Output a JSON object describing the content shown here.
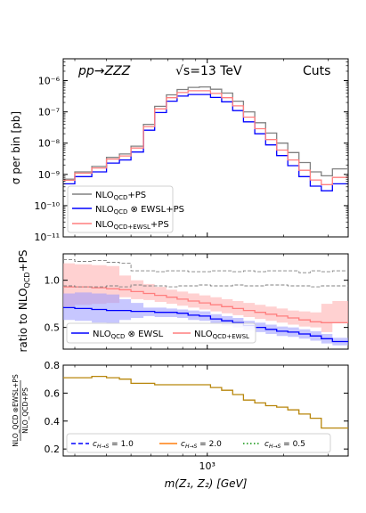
{
  "colors": {
    "nlo_ps": "#808080",
    "ewsl": "#0000ff",
    "ewsl_add": "#ff7f7f",
    "ewsl_band": "#9999ff",
    "add_band": "#ffb3b3",
    "ratio_line": "#b8860b"
  },
  "chart_data": [
    {
      "type": "line",
      "panel": "top",
      "title": "",
      "labels": {
        "process": "pp→ZZZ",
        "energy": "√s=13 TeV",
        "cuts": "Cuts"
      },
      "xlabel": "",
      "ylabel": "σ per bin [pb]",
      "yscale": "log",
      "ylim": [
        1e-11,
        5e-06
      ],
      "xscale": "log",
      "xlim": [
        270,
        3600
      ],
      "grid": false,
      "legend_position": "lower-left",
      "y_ticks": [
        "10⁻¹¹",
        "10⁻¹⁰",
        "10⁻⁹",
        "10⁻⁸",
        "10⁻⁷",
        "10⁻⁶"
      ],
      "x_edges": [
        270,
        300,
        350,
        400,
        450,
        500,
        560,
        620,
        690,
        760,
        840,
        930,
        1030,
        1140,
        1260,
        1390,
        1540,
        1700,
        1880,
        2080,
        2300,
        2550,
        2820,
        3120,
        3600
      ],
      "series": [
        {
          "name": "NLO_QCD+PS",
          "legend": "NLO",
          "legend_sub": "QCD",
          "legend_rest": "+PS",
          "color": "#808080",
          "values": [
            7e-10,
            1.2e-09,
            1.8e-09,
            3.5e-09,
            4.5e-09,
            8e-09,
            4e-08,
            1.5e-07,
            3.5e-07,
            5.2e-07,
            6.1e-07,
            6.3e-07,
            5.3e-07,
            4e-07,
            2.2e-07,
            1e-07,
            4.5e-08,
            2.1e-08,
            1e-08,
            5e-09,
            2.4e-09,
            1.2e-09,
            9e-10,
            1.5e-09
          ]
        },
        {
          "name": "NLO_QCD⊗EWSL+PS",
          "legend": "NLO",
          "legend_sub": "QCD",
          "legend_rest": " ⊗ EWSL+PS",
          "color": "#0000ff",
          "values": [
            5e-10,
            8.5e-10,
            1.2e-09,
            2.3e-09,
            2.9e-09,
            5.2e-09,
            2.6e-08,
            9.5e-08,
            2.2e-07,
            3.2e-07,
            3.6e-07,
            3.6e-07,
            2.9e-07,
            2.1e-07,
            1.1e-07,
            4.8e-08,
            2e-08,
            8.8e-09,
            4e-09,
            1.9e-09,
            8.5e-10,
            4.2e-10,
            3e-10,
            5e-10
          ]
        },
        {
          "name": "NLO_QCD+EWSL+PS",
          "legend": "NLO",
          "legend_sub": "QCD+EWSL",
          "legend_rest": "+PS",
          "color": "#ff7f7f",
          "values": [
            6.5e-10,
            1.1e-09,
            1.6e-09,
            3.1e-09,
            3.9e-09,
            7e-09,
            3.4e-08,
            1.25e-07,
            2.85e-07,
            4.15e-07,
            4.75e-07,
            4.75e-07,
            3.9e-07,
            2.85e-07,
            1.55e-07,
            6.8e-08,
            2.9e-08,
            1.3e-08,
            6e-09,
            2.9e-09,
            1.35e-09,
            6.6e-10,
            4.7e-10,
            8e-10
          ]
        }
      ]
    },
    {
      "type": "line",
      "panel": "middle",
      "title": "",
      "xlabel": "",
      "ylabel": "ratio to NLO",
      "ylabel_sub": "QCD",
      "ylabel_rest": "+PS",
      "ylim": [
        0.27,
        1.28
      ],
      "y_ticks": [
        "0.5",
        "1.0"
      ],
      "legend_position": "bottom",
      "series": [
        {
          "name": "NLO_QCD⊗EWSL",
          "legend": "NLO",
          "legend_sub": "QCD",
          "legend_rest": " ⊗ EWSL",
          "color": "#0000ff",
          "values": [
            0.71,
            0.7,
            0.69,
            0.68,
            0.68,
            0.67,
            0.67,
            0.66,
            0.66,
            0.65,
            0.63,
            0.62,
            0.59,
            0.57,
            0.55,
            0.52,
            0.5,
            0.48,
            0.46,
            0.45,
            0.43,
            0.41,
            0.38,
            0.35
          ],
          "band_low": [
            0.58,
            0.57,
            0.55,
            0.54,
            0.58,
            0.6,
            0.62,
            0.61,
            0.61,
            0.6,
            0.58,
            0.57,
            0.54,
            0.52,
            0.5,
            0.47,
            0.45,
            0.43,
            0.41,
            0.4,
            0.38,
            0.36,
            0.33,
            0.31
          ],
          "band_high": [
            0.86,
            0.87,
            0.86,
            0.85,
            0.8,
            0.76,
            0.71,
            0.71,
            0.7,
            0.69,
            0.68,
            0.67,
            0.64,
            0.62,
            0.6,
            0.57,
            0.55,
            0.53,
            0.51,
            0.5,
            0.48,
            0.46,
            0.43,
            0.39
          ]
        },
        {
          "name": "NLO_QCD+EWSL",
          "legend": "NLO",
          "legend_sub": "QCD+EWSL",
          "legend_rest": "",
          "color": "#ff7f7f",
          "values": [
            0.93,
            0.93,
            0.92,
            0.91,
            0.9,
            0.88,
            0.86,
            0.84,
            0.82,
            0.8,
            0.78,
            0.76,
            0.74,
            0.72,
            0.7,
            0.68,
            0.66,
            0.64,
            0.62,
            0.6,
            0.58,
            0.56,
            0.55,
            0.55
          ],
          "band_low": [
            0.72,
            0.74,
            0.75,
            0.76,
            0.82,
            0.8,
            0.79,
            0.77,
            0.75,
            0.73,
            0.71,
            0.69,
            0.67,
            0.65,
            0.63,
            0.61,
            0.59,
            0.57,
            0.55,
            0.53,
            0.51,
            0.5,
            0.45,
            0.55
          ],
          "band_high": [
            1.18,
            1.17,
            1.16,
            1.15,
            1.05,
            1.0,
            0.96,
            0.93,
            0.9,
            0.88,
            0.86,
            0.84,
            0.82,
            0.8,
            0.78,
            0.76,
            0.74,
            0.72,
            0.7,
            0.68,
            0.67,
            0.66,
            0.75,
            0.78
          ]
        },
        {
          "name": "scale_upper",
          "style": "dashed",
          "color": "#808080",
          "values": [
            1.22,
            1.2,
            1.21,
            1.19,
            1.18,
            1.1,
            1.1,
            1.09,
            1.1,
            1.1,
            1.09,
            1.09,
            1.1,
            1.1,
            1.09,
            1.1,
            1.09,
            1.1,
            1.1,
            1.1,
            1.08,
            1.1,
            1.09,
            1.1
          ]
        },
        {
          "name": "scale_lower",
          "style": "dashed",
          "color": "#808080",
          "values": [
            0.94,
            0.93,
            0.93,
            0.94,
            0.93,
            0.95,
            0.94,
            0.94,
            0.93,
            0.94,
            0.94,
            0.95,
            0.94,
            0.94,
            0.95,
            0.94,
            0.94,
            0.95,
            0.95,
            0.94,
            0.94,
            0.93,
            0.94,
            0.94
          ]
        }
      ]
    },
    {
      "type": "line",
      "panel": "bottom",
      "title": "",
      "xlabel": "m(Z₁, Z₂) [GeV]",
      "x_tick_label": "10³",
      "ylabel_num": "NLO_QCD ⊗EWSL+PS",
      "ylabel_den": "NLO_QCD+PS",
      "ylim": [
        0.15,
        0.8
      ],
      "y_ticks": [
        "0.2",
        "0.4",
        "0.6",
        "0.8"
      ],
      "legend_position": "bottom",
      "series": [
        {
          "name": "c_{H→S}=1.0",
          "legend_sym": "c",
          "legend_sub": "H→S",
          "legend_rest": " = 1.0",
          "style": "dashed",
          "color": "#0000ff"
        },
        {
          "name": "c_{H→S}=2.0",
          "legend_sym": "c",
          "legend_sub": "H→S",
          "legend_rest": " = 2.0",
          "style": "solid",
          "color": "#ff7f0e"
        },
        {
          "name": "c_{H→S}=0.5",
          "legend_sym": "c",
          "legend_sub": "H→S",
          "legend_rest": " = 0.5",
          "style": "dotted",
          "color": "#2ca02c",
          "values": [
            0.71,
            0.71,
            0.72,
            0.71,
            0.7,
            0.67,
            0.67,
            0.66,
            0.66,
            0.66,
            0.66,
            0.66,
            0.64,
            0.62,
            0.59,
            0.55,
            0.53,
            0.51,
            0.5,
            0.48,
            0.45,
            0.42,
            0.35,
            0.35
          ]
        }
      ],
      "ylabel_num_sub": "QCD",
      "ylabel_den_sub": "QCD"
    }
  ]
}
